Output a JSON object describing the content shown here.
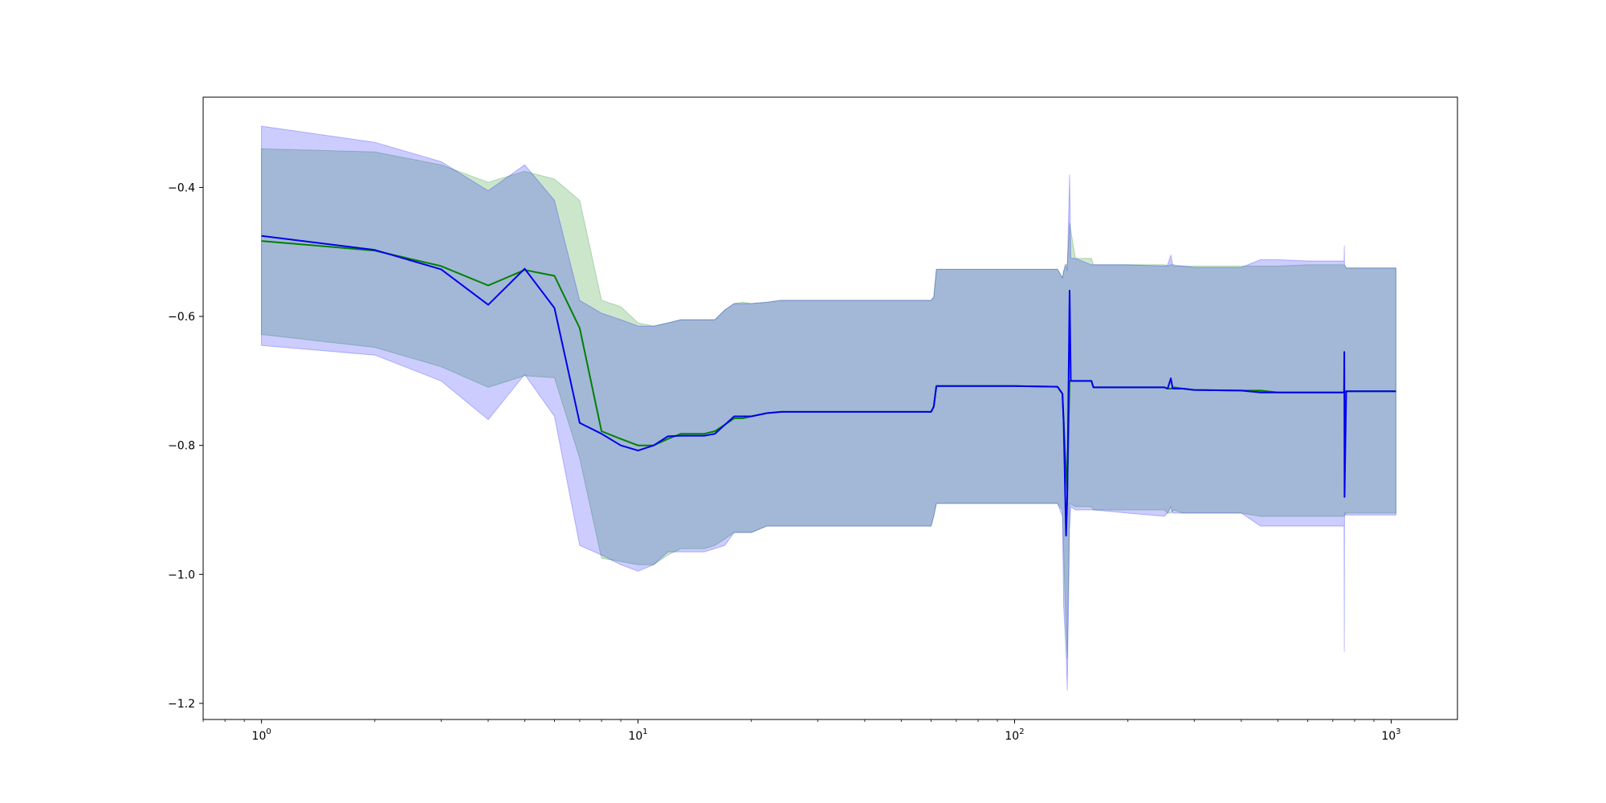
{
  "chart_data": {
    "type": "line",
    "title": "",
    "xlabel": "",
    "ylabel": "",
    "xscale": "log",
    "xlim": [
      0.7,
      1500
    ],
    "ylim": [
      -1.225,
      -0.26
    ],
    "grid": false,
    "legend": "none",
    "x_ticks": [
      {
        "base": "10",
        "exp": "0",
        "value": 1
      },
      {
        "base": "10",
        "exp": "1",
        "value": 10
      },
      {
        "base": "10",
        "exp": "2",
        "value": 100
      },
      {
        "base": "10",
        "exp": "3",
        "value": 1000
      }
    ],
    "y_ticks": [
      {
        "label": "−0.4",
        "value": -0.4
      },
      {
        "label": "−0.6",
        "value": -0.6
      },
      {
        "label": "−0.8",
        "value": -0.8
      },
      {
        "label": "−1.0",
        "value": -1.0
      },
      {
        "label": "−1.2",
        "value": -1.2
      }
    ],
    "series": [
      {
        "color": "#008000",
        "band_color": "#008000",
        "band_opacity": 0.2,
        "x": [
          1,
          2,
          3,
          4,
          5,
          6,
          7,
          8,
          9,
          10,
          11,
          12,
          13,
          15,
          16,
          17,
          18,
          19,
          20,
          22,
          24,
          30,
          40,
          50,
          60,
          61,
          62,
          80,
          100,
          130,
          134,
          136,
          138,
          140,
          145,
          160,
          162,
          200,
          250,
          255,
          260,
          265,
          280,
          300,
          400,
          450,
          500,
          600,
          750,
          760,
          1000,
          1030
        ],
        "y": [
          -0.483,
          -0.498,
          -0.522,
          -0.552,
          -0.528,
          -0.537,
          -0.618,
          -0.778,
          -0.79,
          -0.8,
          -0.8,
          -0.79,
          -0.782,
          -0.782,
          -0.778,
          -0.768,
          -0.758,
          -0.758,
          -0.755,
          -0.75,
          -0.748,
          -0.748,
          -0.748,
          -0.748,
          -0.748,
          -0.74,
          -0.708,
          -0.708,
          -0.708,
          -0.709,
          -0.72,
          -0.805,
          -0.87,
          -0.7,
          -0.7,
          -0.7,
          -0.71,
          -0.71,
          -0.71,
          -0.712,
          -0.712,
          -0.71,
          -0.712,
          -0.714,
          -0.715,
          -0.715,
          -0.718,
          -0.718,
          -0.718,
          -0.716,
          -0.716,
          -0.716
        ],
        "upper": [
          -0.34,
          -0.345,
          -0.365,
          -0.392,
          -0.375,
          -0.387,
          -0.42,
          -0.575,
          -0.585,
          -0.61,
          -0.615,
          -0.61,
          -0.605,
          -0.605,
          -0.605,
          -0.59,
          -0.58,
          -0.578,
          -0.58,
          -0.578,
          -0.575,
          -0.575,
          -0.575,
          -0.575,
          -0.575,
          -0.57,
          -0.527,
          -0.527,
          -0.527,
          -0.527,
          -0.54,
          -0.52,
          -0.52,
          -0.455,
          -0.51,
          -0.51,
          -0.52,
          -0.52,
          -0.52,
          -0.522,
          -0.52,
          -0.52,
          -0.522,
          -0.522,
          -0.522,
          -0.522,
          -0.522,
          -0.52,
          -0.52,
          -0.525,
          -0.525,
          -0.525
        ],
        "lower": [
          -0.628,
          -0.648,
          -0.678,
          -0.71,
          -0.692,
          -0.695,
          -0.82,
          -0.975,
          -0.98,
          -0.985,
          -0.985,
          -0.97,
          -0.96,
          -0.96,
          -0.955,
          -0.945,
          -0.935,
          -0.935,
          -0.935,
          -0.925,
          -0.925,
          -0.925,
          -0.925,
          -0.925,
          -0.925,
          -0.91,
          -0.89,
          -0.89,
          -0.89,
          -0.89,
          -0.9,
          -1.03,
          -1.13,
          -0.89,
          -0.895,
          -0.895,
          -0.9,
          -0.9,
          -0.9,
          -0.905,
          -0.905,
          -0.9,
          -0.905,
          -0.905,
          -0.905,
          -0.91,
          -0.91,
          -0.91,
          -0.91,
          -0.905,
          -0.905,
          -0.905
        ]
      },
      {
        "color": "#0000ee",
        "band_color": "#0000ff",
        "band_opacity": 0.2,
        "x": [
          1,
          2,
          3,
          4,
          5,
          6,
          7,
          8,
          9,
          10,
          11,
          12,
          13,
          15,
          16,
          17,
          18,
          19,
          20,
          22,
          24,
          30,
          40,
          50,
          60,
          61,
          62,
          80,
          100,
          130,
          134,
          135,
          137,
          138,
          140,
          141,
          145,
          160,
          162,
          200,
          250,
          255,
          260,
          263,
          265,
          280,
          300,
          400,
          450,
          500,
          600,
          750,
          751,
          752,
          760,
          1000,
          1030
        ],
        "y": [
          -0.475,
          -0.497,
          -0.527,
          -0.582,
          -0.526,
          -0.587,
          -0.765,
          -0.782,
          -0.8,
          -0.808,
          -0.8,
          -0.786,
          -0.785,
          -0.785,
          -0.782,
          -0.768,
          -0.755,
          -0.755,
          -0.755,
          -0.75,
          -0.748,
          -0.748,
          -0.748,
          -0.748,
          -0.748,
          -0.74,
          -0.708,
          -0.708,
          -0.708,
          -0.709,
          -0.72,
          -0.765,
          -0.94,
          -0.88,
          -0.56,
          -0.7,
          -0.7,
          -0.7,
          -0.71,
          -0.71,
          -0.71,
          -0.712,
          -0.696,
          -0.712,
          -0.712,
          -0.712,
          -0.714,
          -0.715,
          -0.718,
          -0.718,
          -0.718,
          -0.718,
          -0.655,
          -0.88,
          -0.716,
          -0.716,
          -0.716
        ],
        "upper": [
          -0.305,
          -0.33,
          -0.36,
          -0.405,
          -0.365,
          -0.42,
          -0.575,
          -0.595,
          -0.605,
          -0.615,
          -0.615,
          -0.61,
          -0.605,
          -0.605,
          -0.605,
          -0.59,
          -0.58,
          -0.58,
          -0.58,
          -0.578,
          -0.575,
          -0.575,
          -0.575,
          -0.575,
          -0.575,
          -0.57,
          -0.527,
          -0.527,
          -0.527,
          -0.527,
          -0.54,
          -0.53,
          -0.52,
          -0.53,
          -0.38,
          -0.51,
          -0.51,
          -0.52,
          -0.52,
          -0.52,
          -0.522,
          -0.52,
          -0.505,
          -0.52,
          -0.522,
          -0.522,
          -0.524,
          -0.524,
          -0.512,
          -0.512,
          -0.514,
          -0.514,
          -0.49,
          -0.52,
          -0.525,
          -0.525,
          -0.525
        ],
        "lower": [
          -0.645,
          -0.66,
          -0.7,
          -0.76,
          -0.69,
          -0.755,
          -0.955,
          -0.97,
          -0.985,
          -0.995,
          -0.985,
          -0.965,
          -0.965,
          -0.965,
          -0.96,
          -0.955,
          -0.935,
          -0.935,
          -0.935,
          -0.925,
          -0.925,
          -0.925,
          -0.925,
          -0.925,
          -0.925,
          -0.91,
          -0.89,
          -0.89,
          -0.89,
          -0.89,
          -0.91,
          -1.05,
          -1.12,
          -1.18,
          -0.93,
          -0.895,
          -0.9,
          -0.9,
          -0.9,
          -0.905,
          -0.91,
          -0.905,
          -0.895,
          -0.905,
          -0.905,
          -0.905,
          -0.905,
          -0.905,
          -0.925,
          -0.925,
          -0.925,
          -0.925,
          -1.12,
          -0.905,
          -0.908,
          -0.908,
          -0.908
        ]
      }
    ]
  }
}
